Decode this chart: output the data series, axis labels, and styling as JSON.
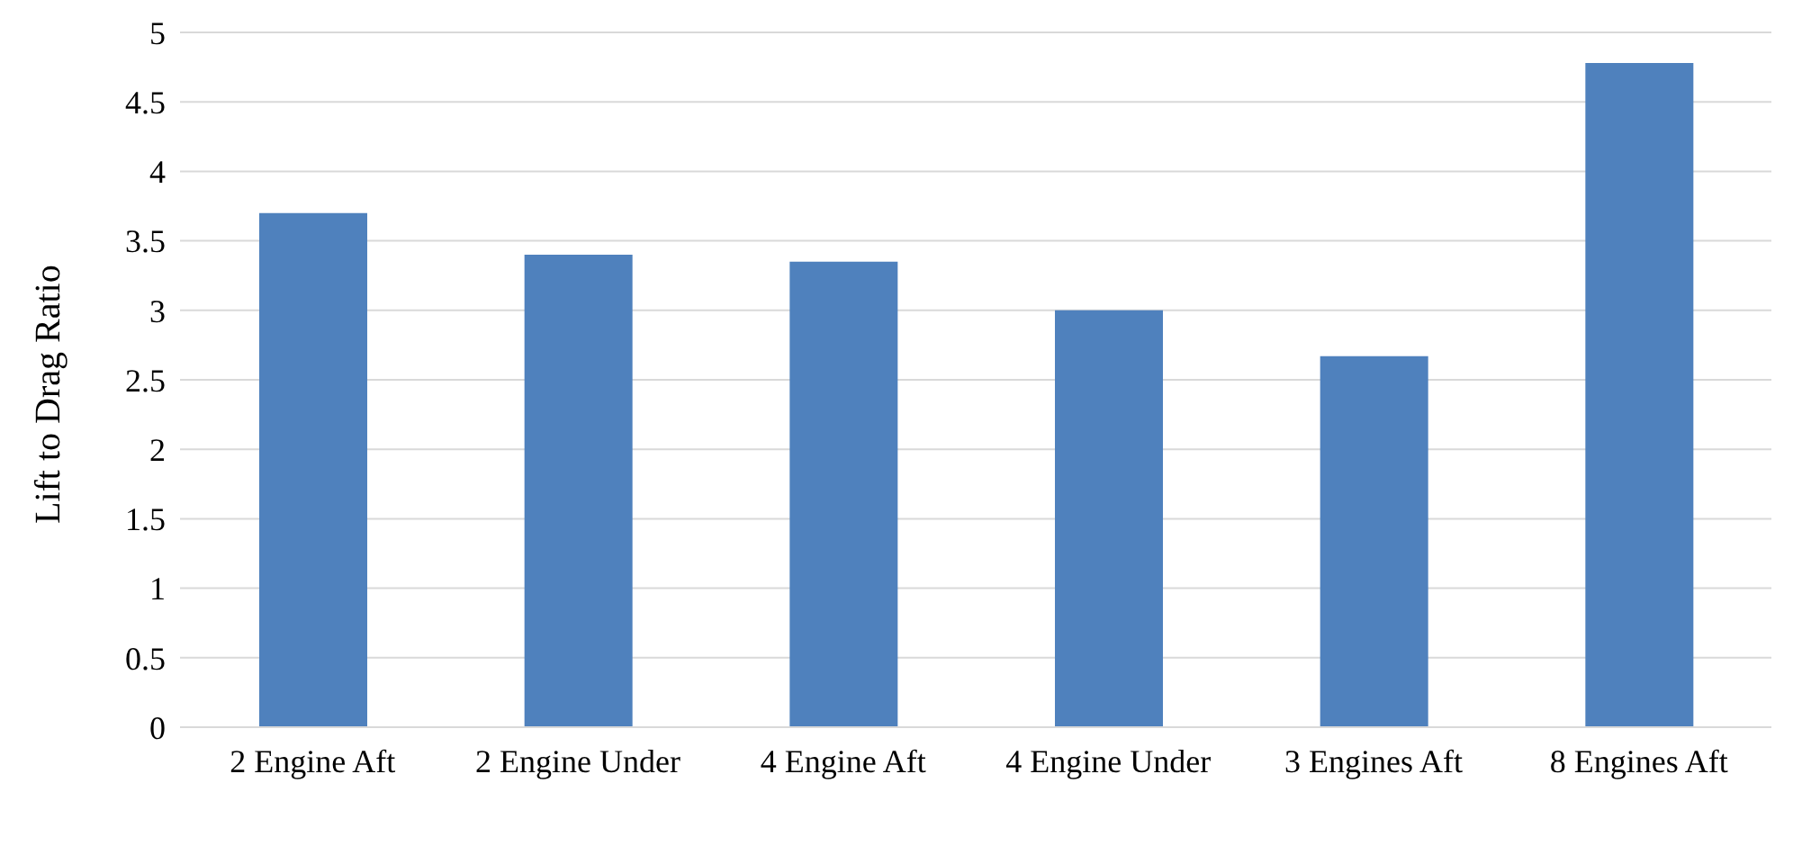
{
  "chart_data": {
    "type": "bar",
    "ylabel": "Lift to Drag Ratio",
    "categories": [
      "2 Engine Aft",
      "2 Engine Under",
      "4 Engine Aft",
      "4 Engine Under",
      "3 Engines Aft",
      "8 Engines Aft"
    ],
    "values": [
      3.7,
      3.4,
      3.35,
      3.0,
      2.67,
      4.78
    ],
    "color": "#4f81bd",
    "ylim": [
      0,
      5
    ],
    "yticks": [
      0,
      0.5,
      1,
      1.5,
      2,
      2.5,
      3,
      3.5,
      4,
      4.5,
      5
    ],
    "grid": "y"
  }
}
